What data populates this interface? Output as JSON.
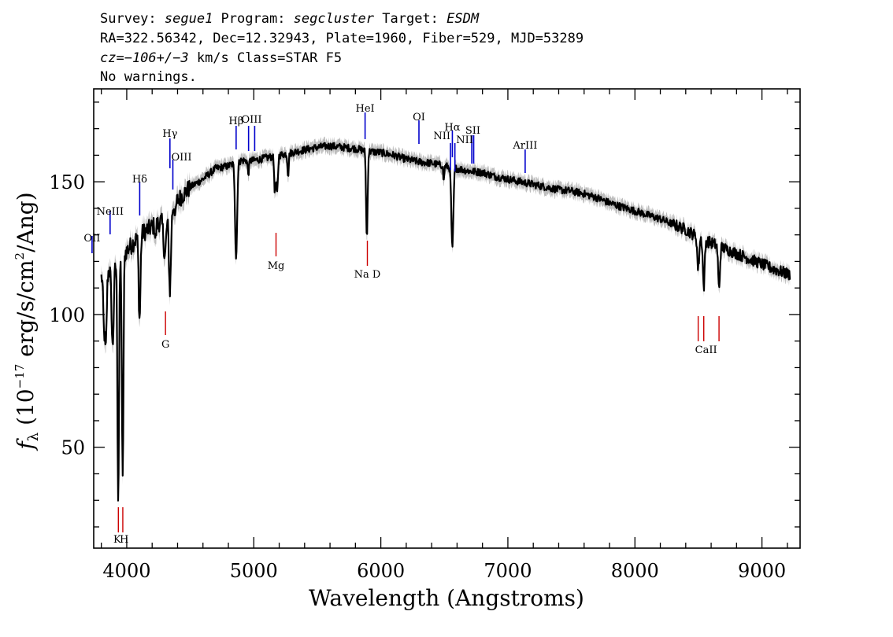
{
  "header": {
    "line1": {
      "survey_label": "Survey: ",
      "survey": "segue1",
      "program_label": " Program: ",
      "program": "segcluster",
      "target_label": " Target: ",
      "target": "ESDM"
    },
    "line2": "RA=322.56342, Dec=12.32943, Plate=1960, Fiber=529, MJD=53289",
    "line3": {
      "cz": "cz=−106+/−3",
      "rest": " km/s Class=STAR F5"
    },
    "line4": "No warnings."
  },
  "chart_data": {
    "type": "line",
    "xlabel": "Wavelength (Angstroms)",
    "ylabel": {
      "f": "f",
      "sub": "λ",
      "pre": " (10",
      "sup1": "−17",
      "mid": " erg/s/cm",
      "sup2": "2",
      "post": "/Ang)"
    },
    "xlim": [
      3740,
      9300
    ],
    "ylim": [
      12,
      185
    ],
    "x_ticks": [
      4000,
      5000,
      6000,
      7000,
      8000,
      9000
    ],
    "y_ticks": [
      50,
      100,
      150
    ],
    "grid": false,
    "colors": {
      "spectrum": "#000000",
      "error_band": "#bdbdbd",
      "emission_lines": "#0000cc",
      "absorption_lines": "#cc0000"
    },
    "continuum": [
      [
        3800,
        114
      ],
      [
        3900,
        118
      ],
      [
        4000,
        124
      ],
      [
        4100,
        130
      ],
      [
        4200,
        133
      ],
      [
        4300,
        136
      ],
      [
        4400,
        143
      ],
      [
        4500,
        148
      ],
      [
        4600,
        151
      ],
      [
        4700,
        155
      ],
      [
        4800,
        156
      ],
      [
        4900,
        158
      ],
      [
        5000,
        158
      ],
      [
        5100,
        159
      ],
      [
        5200,
        160
      ],
      [
        5300,
        161
      ],
      [
        5400,
        162
      ],
      [
        5500,
        163
      ],
      [
        5600,
        163.5
      ],
      [
        5700,
        163
      ],
      [
        5800,
        162.5
      ],
      [
        5900,
        161.5
      ],
      [
        6000,
        161
      ],
      [
        6100,
        160
      ],
      [
        6200,
        158.5
      ],
      [
        6300,
        157.5
      ],
      [
        6400,
        157
      ],
      [
        6500,
        156
      ],
      [
        6600,
        155
      ],
      [
        6700,
        154
      ],
      [
        6800,
        153.5
      ],
      [
        6900,
        152
      ],
      [
        7000,
        151
      ],
      [
        7100,
        150
      ],
      [
        7200,
        149
      ],
      [
        7300,
        148
      ],
      [
        7400,
        147
      ],
      [
        7500,
        146.5
      ],
      [
        7600,
        145.5
      ],
      [
        7700,
        144
      ],
      [
        7800,
        142
      ],
      [
        7900,
        140.5
      ],
      [
        8000,
        139
      ],
      [
        8100,
        137.5
      ],
      [
        8200,
        136
      ],
      [
        8300,
        134
      ],
      [
        8400,
        132
      ],
      [
        8500,
        129
      ],
      [
        8600,
        127
      ],
      [
        8700,
        125
      ],
      [
        8800,
        123
      ],
      [
        8900,
        121
      ],
      [
        9000,
        119
      ],
      [
        9100,
        117
      ],
      [
        9220,
        115
      ]
    ],
    "absorption_features": [
      {
        "x": 3820,
        "depth": 18,
        "width": 6
      },
      {
        "x": 3835,
        "depth": 28,
        "width": 7
      },
      {
        "x": 3889,
        "depth": 30,
        "width": 8
      },
      {
        "x": 3933,
        "depth": 90,
        "width": 6
      },
      {
        "x": 3968,
        "depth": 85,
        "width": 6
      },
      {
        "x": 4101,
        "depth": 32,
        "width": 7
      },
      {
        "x": 4227,
        "depth": 6,
        "width": 4
      },
      {
        "x": 4300,
        "depth": 14,
        "width": 10
      },
      {
        "x": 4340,
        "depth": 30,
        "width": 8
      },
      {
        "x": 4383,
        "depth": 6,
        "width": 4
      },
      {
        "x": 4861,
        "depth": 36,
        "width": 8
      },
      {
        "x": 4957,
        "depth": 5,
        "width": 5
      },
      {
        "x": 5167,
        "depth": 14,
        "width": 6
      },
      {
        "x": 5184,
        "depth": 14,
        "width": 6
      },
      {
        "x": 5270,
        "depth": 8,
        "width": 5
      },
      {
        "x": 5890,
        "depth": 33,
        "width": 6
      },
      {
        "x": 6495,
        "depth": 6,
        "width": 4
      },
      {
        "x": 6563,
        "depth": 31,
        "width": 8
      },
      {
        "x": 8498,
        "depth": 12,
        "width": 7
      },
      {
        "x": 8542,
        "depth": 18,
        "width": 7
      },
      {
        "x": 8662,
        "depth": 16,
        "width": 7
      }
    ],
    "emission_lines": [
      {
        "label": "OII",
        "x": 3727
      },
      {
        "label": "NeIII",
        "x": 3869
      },
      {
        "label": "Hδ",
        "x": 4102
      },
      {
        "label": "Hγ",
        "x": 4340
      },
      {
        "label": "OIII",
        "x": 4363
      },
      {
        "label": "Hβ",
        "x": 4861
      },
      {
        "label": "OIII",
        "x": 4959
      },
      {
        "label": "OIII",
        "x": 5007
      },
      {
        "label": "HeI",
        "x": 5876
      },
      {
        "label": "OI",
        "x": 6300
      },
      {
        "label": "NII",
        "x": 6548
      },
      {
        "label": "Hα",
        "x": 6563
      },
      {
        "label": "NII",
        "x": 6583
      },
      {
        "label": "SII",
        "x": 6716
      },
      {
        "label": "SII",
        "x": 6731
      },
      {
        "label": "ArIII",
        "x": 7136
      }
    ],
    "absorption_lines": [
      {
        "label": "K",
        "x": 3934
      },
      {
        "label": "H",
        "x": 3969
      },
      {
        "label": "G",
        "x": 4305
      },
      {
        "label": "Mg",
        "x": 5175
      },
      {
        "label": "Na D",
        "x": 5894
      },
      {
        "label": "CaII",
        "x": 8498
      },
      {
        "label": "CaII",
        "x": 8542
      },
      {
        "label": "CaII",
        "x": 8662
      }
    ]
  }
}
